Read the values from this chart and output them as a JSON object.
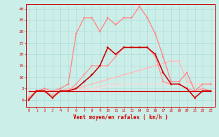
{
  "xlabel": "Vent moyen/en rafales ( km/h )",
  "background_color": "#cceee8",
  "grid_color": "#aadddd",
  "x_ticks": [
    0,
    1,
    2,
    3,
    4,
    5,
    6,
    7,
    8,
    9,
    10,
    11,
    12,
    13,
    14,
    15,
    16,
    17,
    18,
    19,
    20,
    21,
    22,
    23
  ],
  "ylim": [
    -3,
    42
  ],
  "xlim": [
    -0.3,
    23.5
  ],
  "yticks": [
    0,
    5,
    10,
    15,
    20,
    25,
    30,
    35,
    40
  ],
  "series": [
    {
      "x": [
        0,
        1,
        2,
        3,
        4,
        5,
        6,
        7,
        8,
        9,
        10,
        11,
        12,
        13,
        14,
        15,
        16,
        17,
        18,
        19,
        20,
        21,
        22,
        23
      ],
      "y": [
        0,
        4,
        4,
        1,
        4,
        4,
        5,
        8,
        11,
        15,
        23,
        20,
        23,
        23,
        23,
        23,
        20,
        12,
        7,
        7,
        5,
        1,
        4,
        4
      ],
      "color": "#cc0000",
      "lw": 1.2,
      "marker": "s",
      "ms": 2.0,
      "zorder": 5
    },
    {
      "x": [
        0,
        1,
        2,
        3,
        4,
        5,
        6,
        7,
        8,
        9,
        10,
        11,
        12,
        13,
        14,
        15,
        16,
        17,
        18,
        19,
        20,
        21,
        22,
        23
      ],
      "y": [
        4,
        4,
        4,
        4,
        4,
        4,
        4,
        4,
        4,
        4,
        4,
        4,
        4,
        4,
        4,
        4,
        4,
        4,
        4,
        4,
        4,
        4,
        4,
        4
      ],
      "color": "#cc0000",
      "lw": 0.9,
      "marker": null,
      "ms": 0,
      "zorder": 4
    },
    {
      "x": [
        0,
        1,
        2,
        3,
        4,
        5,
        6,
        7,
        8,
        9,
        10,
        11,
        12,
        13,
        14,
        15,
        16,
        17,
        18,
        19,
        20,
        21,
        22,
        23
      ],
      "y": [
        1,
        4,
        5,
        4,
        5,
        7,
        29,
        36,
        36,
        30,
        36,
        33,
        36,
        36,
        41,
        36,
        29,
        19,
        8,
        8,
        12,
        4,
        7,
        7
      ],
      "color": "#ff8888",
      "lw": 1.0,
      "marker": "s",
      "ms": 1.8,
      "zorder": 3
    },
    {
      "x": [
        0,
        1,
        2,
        3,
        4,
        5,
        6,
        7,
        8,
        9,
        10,
        11,
        12,
        13,
        14,
        15,
        16,
        17,
        18,
        19,
        20,
        21,
        22,
        23
      ],
      "y": [
        1,
        4,
        4,
        2,
        4,
        4,
        7,
        11,
        15,
        15,
        15,
        19,
        23,
        23,
        23,
        23,
        19,
        8,
        7,
        7,
        5,
        4,
        5,
        4
      ],
      "color": "#ff9999",
      "lw": 1.0,
      "marker": "s",
      "ms": 1.8,
      "zorder": 3
    },
    {
      "x": [
        0,
        1,
        2,
        3,
        4,
        5,
        6,
        7,
        8,
        9,
        10,
        11,
        12,
        13,
        14,
        15,
        16,
        17,
        18,
        19,
        20,
        21,
        22,
        23
      ],
      "y": [
        4,
        4,
        4,
        4,
        4,
        5,
        5,
        6,
        7,
        8,
        9,
        10,
        11,
        12,
        13,
        14,
        15,
        16,
        17,
        17,
        8,
        7,
        7,
        7
      ],
      "color": "#ffbbbb",
      "lw": 1.0,
      "marker": "s",
      "ms": 1.5,
      "zorder": 2
    },
    {
      "x": [
        0,
        1,
        2,
        3,
        4,
        5,
        6,
        7,
        8,
        9,
        10,
        11,
        12,
        13,
        14,
        15,
        16,
        17,
        18,
        19,
        20,
        21,
        22,
        23
      ],
      "y": [
        4,
        4,
        4,
        4,
        4,
        4,
        5,
        5,
        5,
        6,
        7,
        7,
        7,
        7,
        7,
        7,
        7,
        7,
        7,
        7,
        7,
        7,
        7,
        7
      ],
      "color": "#ffcccc",
      "lw": 0.8,
      "marker": null,
      "ms": 0,
      "zorder": 2
    },
    {
      "x": [
        0,
        1,
        2,
        3,
        4,
        5,
        6,
        7,
        8,
        9,
        10,
        11,
        12,
        13,
        14,
        15,
        16,
        17,
        18,
        19,
        20,
        21,
        22,
        23
      ],
      "y": [
        4,
        4,
        4,
        4,
        4,
        4,
        4,
        4,
        5,
        5,
        6,
        6,
        7,
        7,
        7,
        7,
        7,
        7,
        7,
        7,
        7,
        7,
        7,
        7
      ],
      "color": "#ffdddd",
      "lw": 0.8,
      "marker": null,
      "ms": 0,
      "zorder": 2
    }
  ]
}
